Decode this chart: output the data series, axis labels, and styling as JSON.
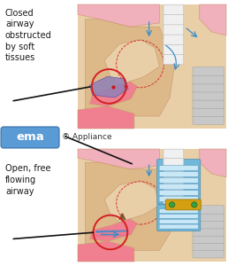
{
  "bg_color": "#ffffff",
  "top_label_lines": [
    "Closed",
    "airway",
    "obstructed",
    "by soft",
    "tissues"
  ],
  "bottom_label_lines": [
    "Open, free",
    "flowing",
    "airway"
  ],
  "ema_text": "ema",
  "appliance_text": "® Appliance",
  "ema_logo_color": "#5b9bd5",
  "ema_text_color": "#ffffff",
  "skin_tan": "#ddb98a",
  "skin_light": "#e8cfa8",
  "skin_dark": "#c9956e",
  "pink_bright": "#f08090",
  "pink_medium": "#f0b0bc",
  "pink_light": "#f5d0d8",
  "pink_deep": "#e87090",
  "purple_tissue": "#9080b8",
  "purple_light": "#b8a0d0",
  "teeth_white": "#f0f0f0",
  "teeth_blue": "#b0d0e8",
  "red_circle": "#d42020",
  "arrow_black": "#111111",
  "blue_arrow": "#3b8ec8",
  "spine_gray": "#c8c8c8",
  "spine_line": "#999999",
  "appliance_gold": "#d4a010",
  "appliance_green": "#38a040",
  "appliance_blue": "#70b8d8",
  "brown_arrow": "#7a5530",
  "dashed_red": "#d42020",
  "nasal_skin": "#d4a878"
}
